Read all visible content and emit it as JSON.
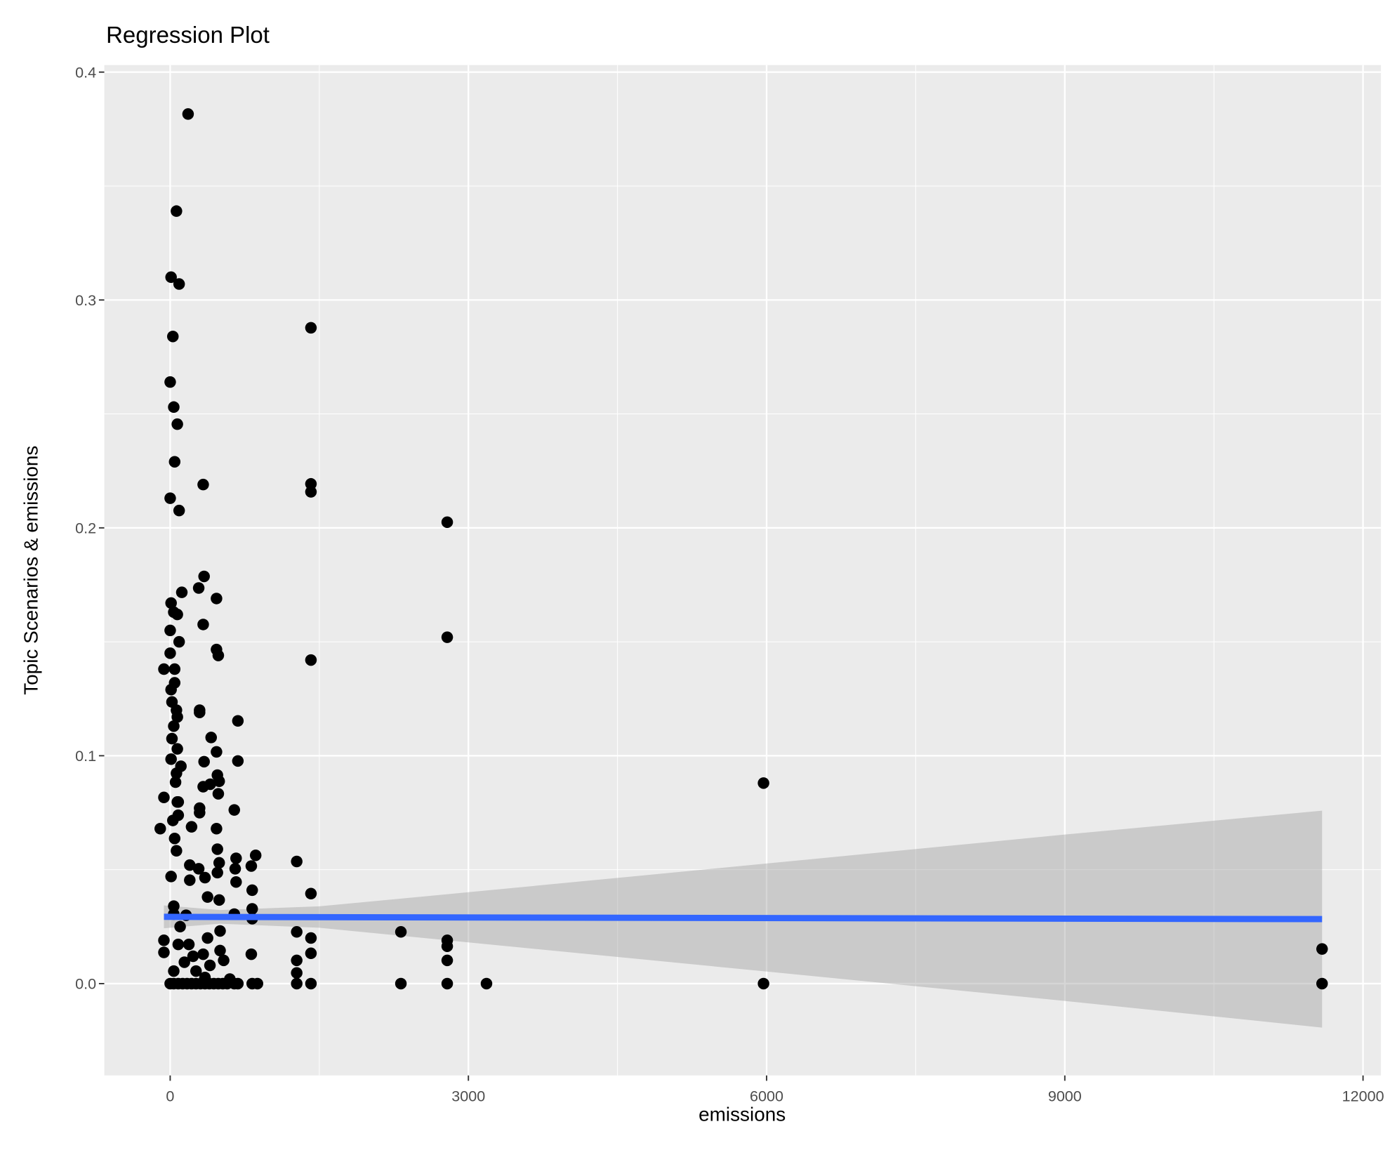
{
  "chart_data": {
    "type": "scatter",
    "title": "Regression Plot",
    "xlabel": "emissions",
    "ylabel": "Topic Scenarios & emissions",
    "xlim": [
      -663,
      12180
    ],
    "ylim": [
      -0.0403,
      0.4031
    ],
    "x_ticks": [
      0,
      3000,
      6000,
      9000,
      12000
    ],
    "x_tick_labels": [
      "0",
      "3000",
      "6000",
      "9000",
      "12000"
    ],
    "y_ticks": [
      0.0,
      0.1,
      0.2,
      0.3,
      0.4
    ],
    "y_tick_labels": [
      "0.0",
      "0.1",
      "0.2",
      "0.3",
      "0.4"
    ],
    "grid": true,
    "colors": {
      "panel": "#ebebeb",
      "points": "#000000",
      "fit_line": "#3366ff",
      "ribbon": "#999999"
    },
    "points": [
      [
        180,
        0.3816
      ],
      [
        63,
        0.339
      ],
      [
        9,
        0.31
      ],
      [
        90,
        0.307
      ],
      [
        27,
        0.284
      ],
      [
        0,
        0.264
      ],
      [
        36,
        0.253
      ],
      [
        72,
        0.2455
      ],
      [
        45,
        0.229
      ],
      [
        0,
        0.213
      ],
      [
        90,
        0.2076
      ],
      [
        332,
        0.219
      ],
      [
        1416,
        0.2878
      ],
      [
        1416,
        0.2193
      ],
      [
        1416,
        0.2158
      ],
      [
        2787,
        0.2025
      ],
      [
        2787,
        0.152
      ],
      [
        1416,
        0.142
      ],
      [
        5969,
        0.088
      ],
      [
        5969,
        0
      ],
      [
        11588,
        0.0152
      ],
      [
        11588,
        0
      ],
      [
        3182,
        0
      ],
      [
        2787,
        0
      ],
      [
        2787,
        0.0102
      ],
      [
        2787,
        0.0164
      ],
      [
        2787,
        0.019
      ],
      [
        2321,
        0
      ],
      [
        2321,
        0.0227
      ],
      [
        1416,
        0
      ],
      [
        1416,
        0.0133
      ],
      [
        1416,
        0.02
      ],
      [
        1416,
        0.0395
      ],
      [
        1273,
        0
      ],
      [
        1273,
        0.0047
      ],
      [
        1273,
        0.0102
      ],
      [
        1273,
        0.0227
      ],
      [
        1273,
        0.0536
      ],
      [
        341,
        0.1787
      ],
      [
        287,
        0.1736
      ],
      [
        466,
        0.169
      ],
      [
        117,
        0.1717
      ],
      [
        9,
        0.167
      ],
      [
        36,
        0.163
      ],
      [
        72,
        0.162
      ],
      [
        0,
        0.155
      ],
      [
        90,
        0.15
      ],
      [
        332,
        0.1576
      ],
      [
        466,
        0.1466
      ],
      [
        484,
        0.144
      ],
      [
        0,
        0.145
      ],
      [
        -63,
        0.138
      ],
      [
        45,
        0.138
      ],
      [
        45,
        0.132
      ],
      [
        9,
        0.129
      ],
      [
        18,
        0.1236
      ],
      [
        63,
        0.12
      ],
      [
        296,
        0.12
      ],
      [
        296,
        0.119
      ],
      [
        681,
        0.1153
      ],
      [
        72,
        0.117
      ],
      [
        36,
        0.113
      ],
      [
        412,
        0.108
      ],
      [
        18,
        0.1075
      ],
      [
        72,
        0.103
      ],
      [
        466,
        0.1017
      ],
      [
        341,
        0.0974
      ],
      [
        681,
        0.0977
      ],
      [
        9,
        0.0985
      ],
      [
        108,
        0.0954
      ],
      [
        63,
        0.0923
      ],
      [
        54,
        0.0884
      ],
      [
        475,
        0.0915
      ],
      [
        493,
        0.0888
      ],
      [
        332,
        0.0864
      ],
      [
        403,
        0.0875
      ],
      [
        484,
        0.0833
      ],
      [
        -63,
        0.0817
      ],
      [
        72,
        0.0797
      ],
      [
        81,
        0.0797
      ],
      [
        645,
        0.0762
      ],
      [
        296,
        0.077
      ],
      [
        296,
        0.075
      ],
      [
        81,
        0.0739
      ],
      [
        27,
        0.0716
      ],
      [
        -100,
        0.068
      ],
      [
        215,
        0.0688
      ],
      [
        466,
        0.068
      ],
      [
        45,
        0.0637
      ],
      [
        63,
        0.0583
      ],
      [
        475,
        0.059
      ],
      [
        663,
        0.055
      ],
      [
        197,
        0.052
      ],
      [
        493,
        0.053
      ],
      [
        287,
        0.0504
      ],
      [
        654,
        0.0504
      ],
      [
        9,
        0.047
      ],
      [
        860,
        0.0563
      ],
      [
        816,
        0.0516
      ],
      [
        475,
        0.0487
      ],
      [
        350,
        0.0465
      ],
      [
        197,
        0.0454
      ],
      [
        663,
        0.0446
      ],
      [
        825,
        0.041
      ],
      [
        376,
        0.038
      ],
      [
        493,
        0.0367
      ],
      [
        36,
        0.034
      ],
      [
        645,
        0.0305
      ],
      [
        825,
        0.0328
      ],
      [
        825,
        0.0285
      ],
      [
        36,
        0.0305
      ],
      [
        376,
        0.02
      ],
      [
        502,
        0.0231
      ],
      [
        816,
        0.0129
      ],
      [
        502,
        0.0145
      ],
      [
        332,
        0.0129
      ],
      [
        188,
        0.0172
      ],
      [
        -63,
        0.019
      ],
      [
        -63,
        0.0137
      ],
      [
        36,
        0.0055
      ],
      [
        81,
        0.0172
      ],
      [
        538,
        0.0102
      ],
      [
        143,
        0.0094
      ],
      [
        260,
        0.0055
      ],
      [
        350,
        0.0027
      ],
      [
        100,
        0.025
      ],
      [
        160,
        0.03
      ],
      [
        230,
        0.012
      ],
      [
        400,
        0.008
      ],
      [
        600,
        0.002
      ],
      [
        0,
        0
      ],
      [
        36,
        0
      ],
      [
        81,
        0
      ],
      [
        125,
        0
      ],
      [
        170,
        0
      ],
      [
        215,
        0
      ],
      [
        260,
        0
      ],
      [
        305,
        0
      ],
      [
        350,
        0
      ],
      [
        394,
        0
      ],
      [
        439,
        0
      ],
      [
        484,
        0
      ],
      [
        529,
        0
      ],
      [
        574,
        0
      ],
      [
        645,
        0
      ],
      [
        681,
        0
      ],
      [
        825,
        0
      ],
      [
        878,
        0
      ]
    ],
    "fit_line": {
      "x": [
        -63,
        11588
      ],
      "y": [
        0.0293,
        0.0283
      ]
    },
    "ribbon": {
      "x": [
        -63,
        500,
        1500,
        3000,
        6000,
        9000,
        11588
      ],
      "lower": [
        0.0243,
        0.0263,
        0.0245,
        0.0181,
        0.0053,
        -0.0076,
        -0.0193
      ],
      "upper": [
        0.0343,
        0.0323,
        0.0339,
        0.0401,
        0.0527,
        0.0654,
        0.0759
      ]
    }
  }
}
